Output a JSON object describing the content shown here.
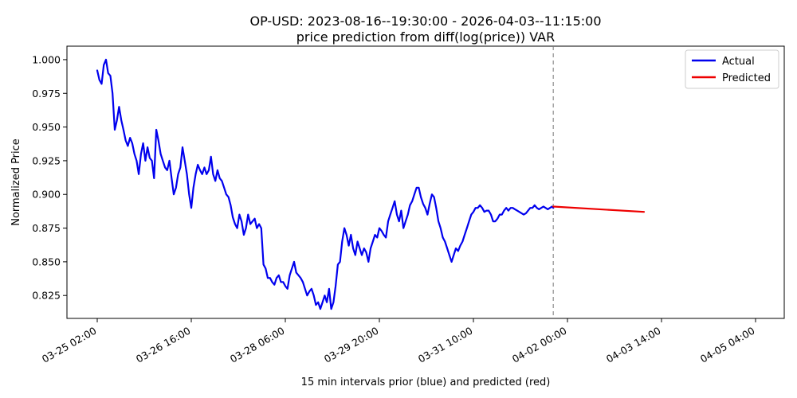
{
  "chart_data": {
    "type": "line",
    "title": "OP-USD: 2023-08-16--19:30:00 - 2026-04-03--11:15:00",
    "subtitle": "price prediction from diff(log(price)) VAR",
    "xlabel": "15 min intervals prior (blue) and predicted (red)",
    "ylabel": "Normalized Price",
    "ylim": [
      0.808,
      1.01
    ],
    "grid": false,
    "legend_position": "top-right",
    "x_ticks": [
      "03-25 02:00",
      "03-26 16:00",
      "03-28 06:00",
      "03-29 20:00",
      "03-31 10:00",
      "04-02 00:00",
      "04-03 14:00",
      "04-05 04:00"
    ],
    "y_ticks": [
      "0.825",
      "0.850",
      "0.875",
      "0.900",
      "0.925",
      "0.950",
      "0.975",
      "1.000"
    ],
    "y_tick_values": [
      0.825,
      0.85,
      0.875,
      0.9,
      0.925,
      0.95,
      0.975,
      1.0
    ],
    "forecast_start": "04-03 11:15",
    "series": [
      {
        "name": "Actual",
        "color": "#0000ee",
        "x_hours": [
          0,
          2,
          4,
          6,
          8,
          10,
          12,
          14,
          16,
          18,
          20,
          22,
          24,
          26,
          28,
          30,
          32,
          34,
          36,
          38,
          40,
          42,
          44,
          46,
          48,
          50,
          52,
          54,
          56,
          58,
          60,
          62,
          64,
          66,
          68,
          70,
          72,
          74,
          76,
          78,
          80,
          82,
          84,
          86,
          88,
          90,
          92,
          94,
          96,
          98,
          100,
          102,
          104,
          106,
          108,
          110,
          112,
          114,
          116,
          118,
          120,
          122,
          124,
          126,
          128,
          130,
          132,
          134,
          136,
          138,
          140,
          142,
          144,
          146,
          148,
          150,
          152,
          154,
          156,
          158,
          160,
          162,
          164,
          166,
          168,
          170,
          172,
          174,
          176,
          178,
          180,
          182,
          184,
          186,
          188,
          190,
          192,
          194,
          196,
          198,
          200,
          202,
          204,
          206,
          208,
          210,
          212,
          214,
          216,
          218,
          220,
          222,
          224,
          226,
          228,
          230,
          232,
          234,
          236,
          238,
          240,
          242,
          244,
          246,
          248,
          250,
          252,
          254,
          256,
          258,
          260,
          262,
          264,
          266,
          268,
          270,
          272,
          274,
          276,
          278,
          280,
          282,
          284,
          286,
          288,
          290,
          292,
          294,
          296,
          298,
          300,
          302,
          304,
          306,
          308,
          310,
          312,
          314,
          316,
          318,
          320,
          322,
          324,
          326,
          328,
          330,
          332,
          334,
          336,
          338,
          340,
          342,
          344,
          346,
          348,
          350,
          352,
          354,
          356,
          358,
          360,
          362,
          364,
          366,
          368,
          370,
          372,
          374,
          376,
          378,
          380,
          382,
          384,
          386,
          388,
          390,
          392,
          394,
          396,
          398,
          400,
          402,
          404,
          406,
          408,
          410,
          412,
          414,
          416,
          417
        ],
        "values": [
          0.992,
          0.985,
          0.982,
          0.996,
          1.0,
          0.99,
          0.988,
          0.975,
          0.948,
          0.955,
          0.965,
          0.955,
          0.948,
          0.94,
          0.936,
          0.942,
          0.938,
          0.93,
          0.925,
          0.915,
          0.93,
          0.938,
          0.925,
          0.935,
          0.927,
          0.925,
          0.912,
          0.948,
          0.94,
          0.93,
          0.925,
          0.92,
          0.918,
          0.925,
          0.912,
          0.9,
          0.905,
          0.915,
          0.92,
          0.935,
          0.925,
          0.915,
          0.9,
          0.89,
          0.905,
          0.915,
          0.922,
          0.918,
          0.915,
          0.92,
          0.915,
          0.918,
          0.928,
          0.915,
          0.91,
          0.918,
          0.912,
          0.91,
          0.905,
          0.9,
          0.898,
          0.892,
          0.883,
          0.878,
          0.875,
          0.885,
          0.88,
          0.87,
          0.875,
          0.885,
          0.878,
          0.88,
          0.882,
          0.875,
          0.878,
          0.875,
          0.848,
          0.845,
          0.838,
          0.838,
          0.835,
          0.833,
          0.838,
          0.84,
          0.835,
          0.835,
          0.832,
          0.83,
          0.84,
          0.845,
          0.85,
          0.842,
          0.84,
          0.838,
          0.835,
          0.83,
          0.825,
          0.828,
          0.83,
          0.825,
          0.818,
          0.82,
          0.815,
          0.82,
          0.825,
          0.82,
          0.83,
          0.815,
          0.82,
          0.832,
          0.848,
          0.85,
          0.865,
          0.875,
          0.87,
          0.862,
          0.87,
          0.86,
          0.855,
          0.865,
          0.86,
          0.855,
          0.86,
          0.857,
          0.85,
          0.86,
          0.865,
          0.87,
          0.868,
          0.875,
          0.873,
          0.87,
          0.868,
          0.88,
          0.885,
          0.89,
          0.895,
          0.885,
          0.88,
          0.888,
          0.875,
          0.88,
          0.885,
          0.892,
          0.895,
          0.9,
          0.905,
          0.905,
          0.898,
          0.893,
          0.89,
          0.885,
          0.893,
          0.9,
          0.898,
          0.89,
          0.88,
          0.875,
          0.868,
          0.865,
          0.86,
          0.855,
          0.85,
          0.855,
          0.86,
          0.858,
          0.862,
          0.865,
          0.87,
          0.875,
          0.88,
          0.885,
          0.887,
          0.89,
          0.89,
          0.892,
          0.89,
          0.887,
          0.888,
          0.888,
          0.885,
          0.88,
          0.88,
          0.882,
          0.885,
          0.885,
          0.888,
          0.89,
          0.888,
          0.89,
          0.89,
          0.889,
          0.888,
          0.887,
          0.886,
          0.885,
          0.886,
          0.888,
          0.89,
          0.89,
          0.892,
          0.89,
          0.889,
          0.89,
          0.891,
          0.89,
          0.889,
          0.89,
          0.891,
          0.89
        ]
      },
      {
        "name": "Predicted",
        "color": "#ee0000",
        "x_hours": [
          417,
          500
        ],
        "values": [
          0.891,
          0.887
        ]
      }
    ],
    "x_tick_hours": [
      0,
      86,
      172,
      258,
      344,
      430,
      516,
      602
    ]
  }
}
